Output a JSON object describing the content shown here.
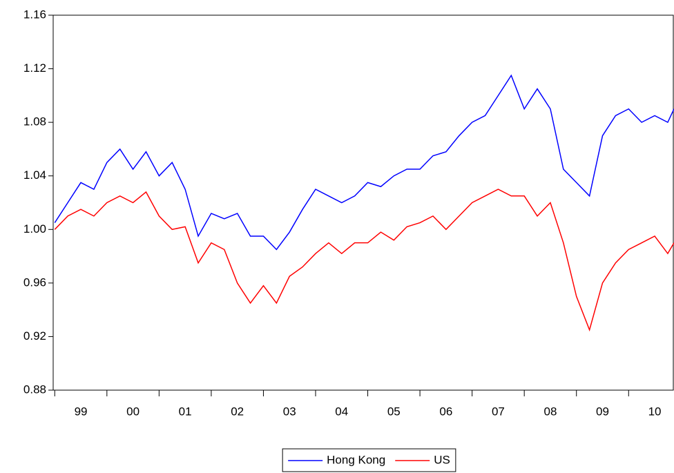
{
  "chart_data": {
    "type": "line",
    "x": [
      1999,
      1999.25,
      1999.5,
      1999.75,
      2000,
      2000.25,
      2000.5,
      2000.75,
      2001,
      2001.25,
      2001.5,
      2001.75,
      2002,
      2002.25,
      2002.5,
      2002.75,
      2003,
      2003.25,
      2003.5,
      2003.75,
      2004,
      2004.25,
      2004.5,
      2004.75,
      2005,
      2005.25,
      2005.5,
      2005.75,
      2006,
      2006.25,
      2006.5,
      2006.75,
      2007,
      2007.25,
      2007.5,
      2007.75,
      2008,
      2008.25,
      2008.5,
      2008.75,
      2009,
      2009.25,
      2009.5,
      2009.75,
      2010,
      2010.25,
      2010.5,
      2010.75,
      2010.87
    ],
    "series": [
      {
        "name": "Hong Kong",
        "color": "#0000ff",
        "values": [
          1.005,
          1.02,
          1.035,
          1.03,
          1.05,
          1.06,
          1.045,
          1.058,
          1.04,
          1.05,
          1.03,
          0.995,
          1.012,
          1.008,
          1.012,
          0.995,
          0.995,
          0.985,
          0.998,
          1.015,
          1.03,
          1.025,
          1.02,
          1.025,
          1.035,
          1.032,
          1.04,
          1.045,
          1.045,
          1.055,
          1.058,
          1.07,
          1.08,
          1.085,
          1.1,
          1.115,
          1.09,
          1.105,
          1.09,
          1.045,
          1.035,
          1.025,
          1.07,
          1.085,
          1.09,
          1.08,
          1.085,
          1.08,
          1.09
        ]
      },
      {
        "name": "US",
        "color": "#ff0000",
        "values": [
          1.0,
          1.01,
          1.015,
          1.01,
          1.02,
          1.025,
          1.02,
          1.028,
          1.01,
          1.0,
          1.002,
          0.975,
          0.99,
          0.985,
          0.96,
          0.945,
          0.958,
          0.945,
          0.965,
          0.972,
          0.982,
          0.99,
          0.982,
          0.99,
          0.99,
          0.998,
          0.992,
          1.002,
          1.005,
          1.01,
          1.0,
          1.01,
          1.02,
          1.025,
          1.03,
          1.025,
          1.025,
          1.01,
          1.02,
          0.99,
          0.95,
          0.925,
          0.96,
          0.975,
          0.985,
          0.99,
          0.995,
          0.982,
          0.99
        ]
      }
    ],
    "xlim": [
      1998.97,
      2010.87
    ],
    "xticks": [
      {
        "value": 1999,
        "label": "99"
      },
      {
        "value": 2000,
        "label": "00"
      },
      {
        "value": 2001,
        "label": "01"
      },
      {
        "value": 2002,
        "label": "02"
      },
      {
        "value": 2003,
        "label": "03"
      },
      {
        "value": 2004,
        "label": "04"
      },
      {
        "value": 2005,
        "label": "05"
      },
      {
        "value": 2006,
        "label": "06"
      },
      {
        "value": 2007,
        "label": "07"
      },
      {
        "value": 2008,
        "label": "08"
      },
      {
        "value": 2009,
        "label": "09"
      },
      {
        "value": 2010,
        "label": "10"
      }
    ],
    "ylim": [
      0.88,
      1.16
    ],
    "yticks": [
      0.88,
      0.92,
      0.96,
      {
        "value": 1.0,
        "label": "1.00"
      },
      1.04,
      1.08,
      1.12,
      1.16
    ],
    "legend": "bottom"
  }
}
